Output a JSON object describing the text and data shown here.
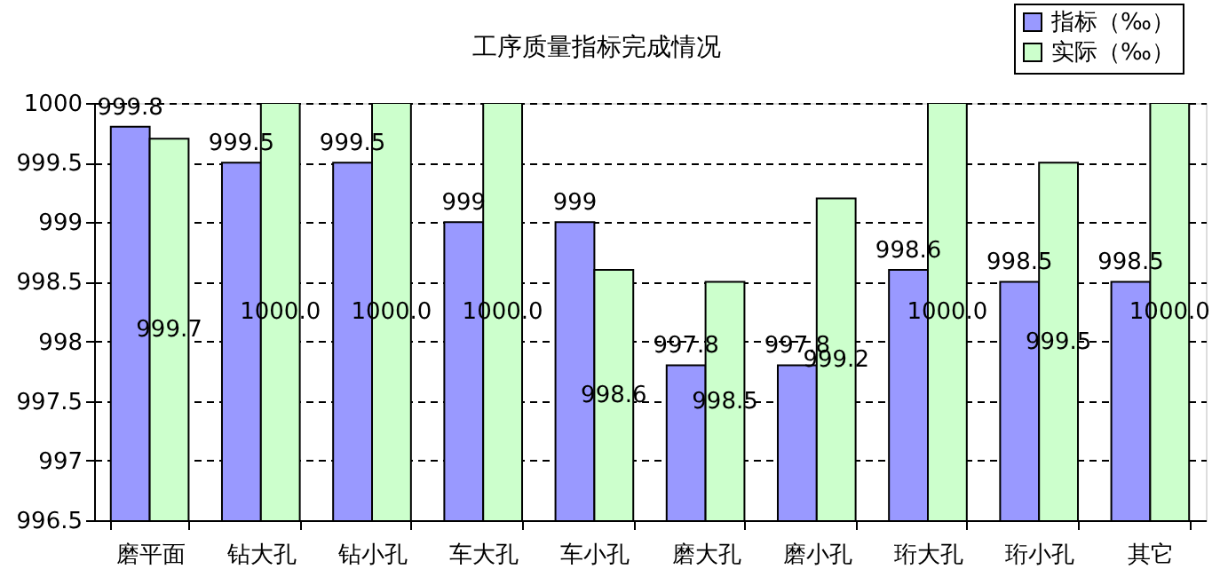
{
  "chart_data": {
    "type": "bar",
    "title": "工序质量指标完成情况",
    "categories": [
      "磨平面",
      "钻大孔",
      "钻小孔",
      "车大孔",
      "车小孔",
      "磨大孔",
      "磨小孔",
      "珩大孔",
      "珩小孔",
      "其它"
    ],
    "series": [
      {
        "name": "指标（‰）",
        "color": "#9999ff",
        "values": [
          999.8,
          999.5,
          999.5,
          999,
          999,
          997.8,
          997.8,
          998.6,
          998.5,
          998.5
        ],
        "value_labels": [
          "999.8",
          "999.5",
          "999.5",
          "999",
          "999",
          "997.8",
          "997.8",
          "998.6",
          "998.5",
          "998.5"
        ]
      },
      {
        "name": "实际（‰）",
        "color": "#ccffcc",
        "values": [
          999.7,
          1000.0,
          1000.0,
          1000.0,
          998.6,
          998.5,
          999.2,
          1000.0,
          999.5,
          1000.0
        ],
        "value_labels": [
          "999.7",
          "1000.0",
          "1000.0",
          "1000.0",
          "998.6",
          "998.5",
          "999.2",
          "1000.0",
          "999.5",
          "1000.0"
        ]
      }
    ],
    "ylim": [
      996.5,
      1000
    ],
    "yticks": [
      996.5,
      997,
      997.5,
      998,
      998.5,
      999,
      999.5,
      1000
    ],
    "grid": "y",
    "legend": "top right"
  }
}
